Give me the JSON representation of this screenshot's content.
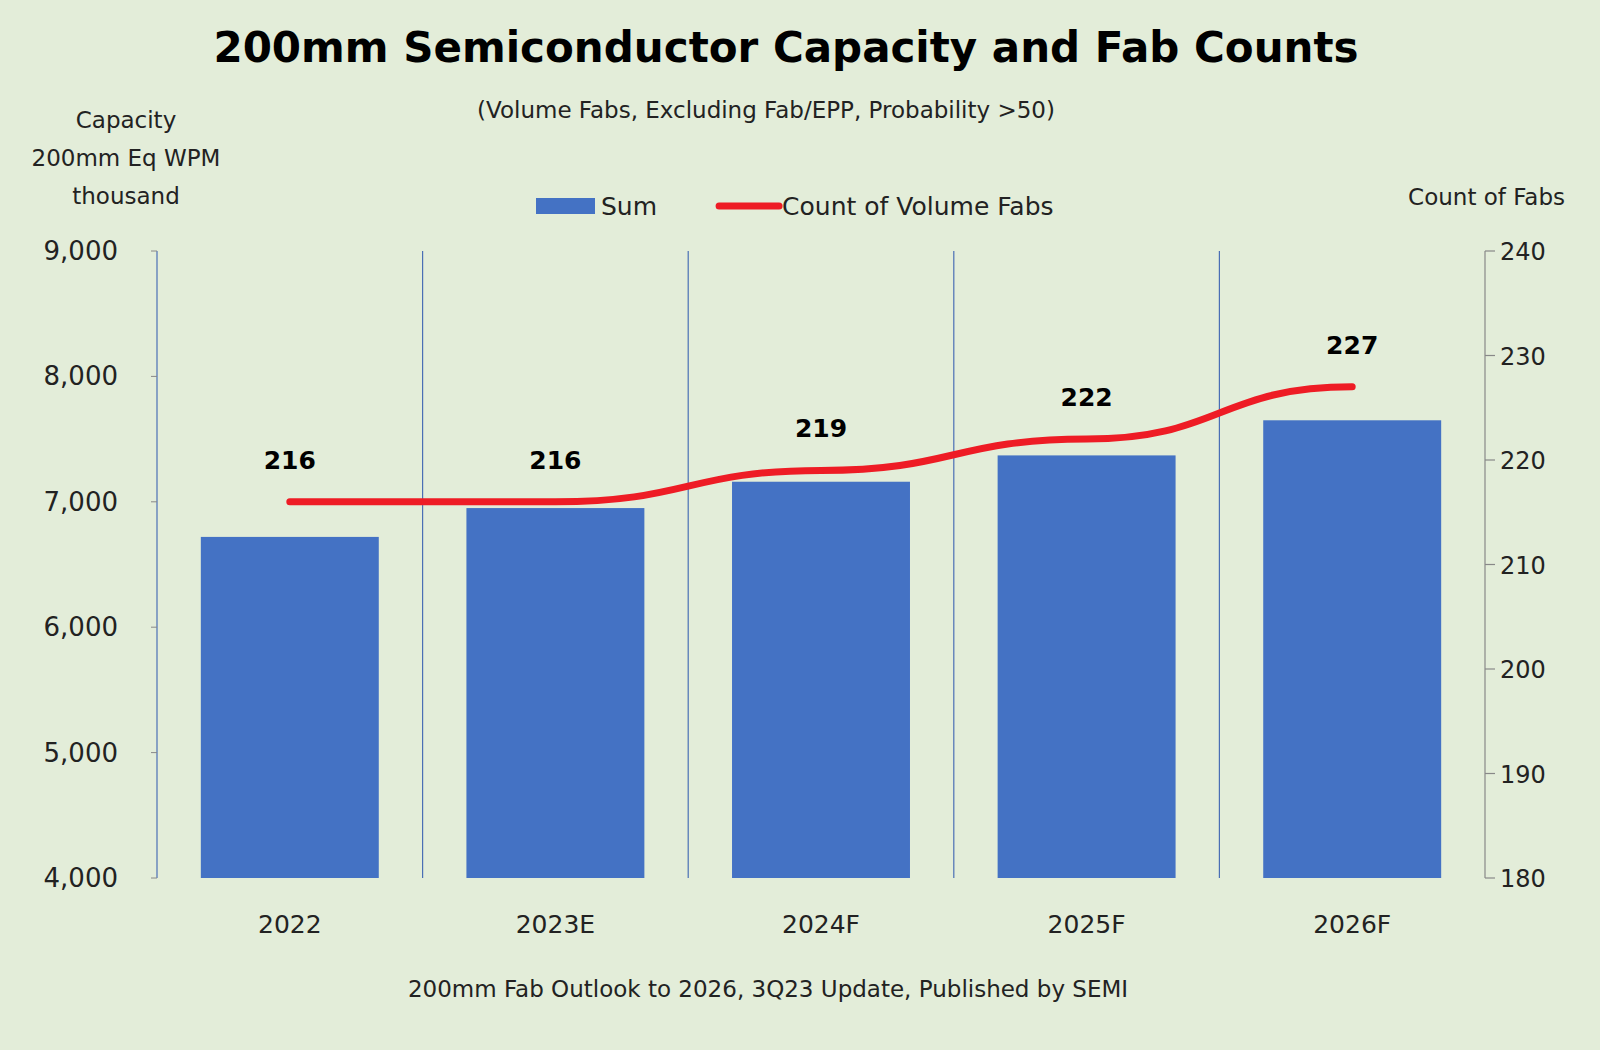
{
  "chart_data": {
    "type": "bar",
    "title": "200mm Semiconductor Capacity and Fab Counts",
    "subtitle": "(Volume Fabs, Excluding Fab/EPP, Probability >50)",
    "ylabel": [
      "Capacity",
      "200mm Eq WPM",
      "thousand"
    ],
    "y2label": "Count of Fabs",
    "source": "200mm Fab Outlook to 2026, 3Q23 Update, Published by SEMI",
    "categories": [
      "2022",
      "2023E",
      "2024F",
      "2025F",
      "2026F"
    ],
    "series": [
      {
        "name": "Sum",
        "type": "bar",
        "color": "#4472c4",
        "values": [
          6720,
          6950,
          7160,
          7370,
          7650
        ]
      },
      {
        "name": "Count of Volume Fabs",
        "type": "line",
        "color": "#ee1c25",
        "axis": "y2",
        "data_labels": true,
        "values": [
          216,
          216,
          219,
          222,
          227
        ]
      }
    ],
    "ylim": [
      4000,
      9000
    ],
    "yticks": [
      {
        "value": 4000,
        "label": "4,000"
      },
      {
        "value": 5000,
        "label": "5,000"
      },
      {
        "value": 6000,
        "label": "6,000"
      },
      {
        "value": 7000,
        "label": "7,000"
      },
      {
        "value": 8000,
        "label": "8,000"
      },
      {
        "value": 9000,
        "label": "9,000"
      }
    ],
    "y2lim": [
      180,
      240
    ],
    "y2ticks": [
      180,
      190,
      200,
      210,
      220,
      230,
      240
    ],
    "grid": true,
    "legend": "top"
  }
}
